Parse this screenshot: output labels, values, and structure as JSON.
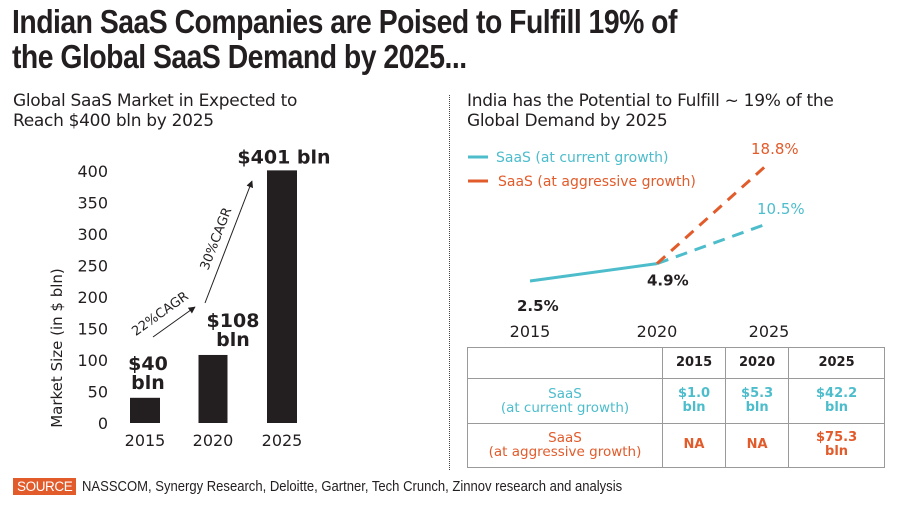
{
  "title": "Indian SaaS Companies are Poised to Fulfill 19% of the Global SaaS Demand by 2025...",
  "title_lines": [
    "Indian SaaS Companies are Poised to Fulfill 19% of",
    "the Global SaaS Demand by 2025..."
  ],
  "left_panel": {
    "title_lines": [
      "Global SaaS Market in Expected to",
      "Reach $400 bln by 2025"
    ]
  },
  "right_panel": {
    "title_lines": [
      "India has the Potential to Fulfill ~ 19% of the",
      "Global Demand by 2025"
    ]
  },
  "colors": {
    "bar": "#231f20",
    "current": "#4dbdcc",
    "aggressive": "#e25b2b",
    "source_badge": "#e25b2b"
  },
  "chart_data": [
    {
      "type": "bar",
      "title": "Global SaaS Market in Expected to Reach $400 bln by 2025",
      "xlabel": "",
      "ylabel": "Market Size (in $ bln)",
      "categories": [
        "2015",
        "2020",
        "2025"
      ],
      "values": [
        40,
        108,
        401
      ],
      "data_labels": [
        [
          "$40",
          "bln"
        ],
        [
          "$108",
          "bln"
        ],
        [
          "$401 bln"
        ]
      ],
      "ylim": [
        0,
        400
      ],
      "yticks": [
        0,
        50,
        100,
        150,
        200,
        250,
        300,
        350,
        400
      ],
      "grid": false,
      "annotations": [
        {
          "text": "22%CAGR",
          "from": "2015",
          "to": "2020"
        },
        {
          "text": "30%CAGR",
          "from": "2020",
          "to": "2025"
        }
      ]
    },
    {
      "type": "line",
      "title": "India has the Potential to Fulfill ~ 19% of the Global Demand by 2025",
      "x": [
        "2015",
        "2020",
        "2025"
      ],
      "series": [
        {
          "name": "SaaS (at current growth)",
          "values": [
            2.5,
            4.9,
            10.5
          ],
          "labels": [
            "2.5%",
            "4.9%",
            "10.5%"
          ],
          "style": "solid until 2020, dashed after"
        },
        {
          "name": "SaaS (at aggressive growth)",
          "values": [
            null,
            4.9,
            18.8
          ],
          "labels": [
            "",
            "",
            "18.8%"
          ],
          "style": "dashed"
        }
      ],
      "legend": "top-left",
      "grid": false
    },
    {
      "type": "table",
      "columns": [
        "",
        "2015",
        "2020",
        "2025"
      ],
      "rows": [
        {
          "label": [
            "SaaS",
            "(at current growth)"
          ],
          "cells": [
            "$1.0 bln",
            "$5.3 bln",
            "$42.2 bln"
          ]
        },
        {
          "label": [
            "SaaS",
            "(at aggressive growth)"
          ],
          "cells": [
            "NA",
            "NA",
            "$75.3 bln"
          ]
        }
      ]
    }
  ],
  "source": {
    "badge": "SOURCE",
    "text": "NASSCOM, Synergy Research, Deloitte, Gartner, Tech Crunch, Zinnov research and analysis"
  }
}
